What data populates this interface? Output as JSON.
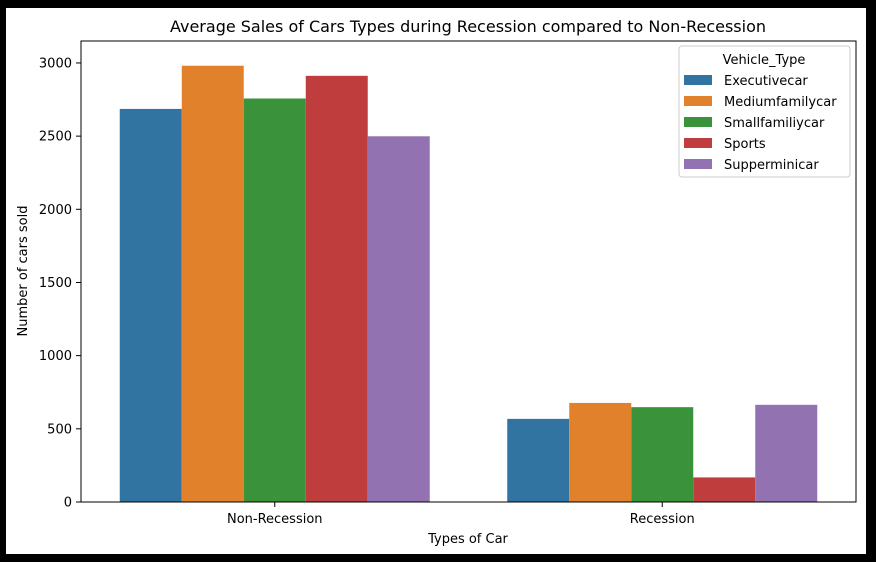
{
  "chart_data": {
    "type": "bar",
    "title": "Average Sales of Cars Types during Recession compared to Non-Recession",
    "xlabel": "Types of Car",
    "ylabel": "Number of cars sold",
    "categories": [
      "Non-Recession",
      "Recession"
    ],
    "series": [
      {
        "name": "Executivecar",
        "color": "#3274a1",
        "values": [
          2686,
          568
        ]
      },
      {
        "name": "Mediumfamilycar",
        "color": "#e1812c",
        "values": [
          2981,
          677
        ]
      },
      {
        "name": "Smallfamiliycar",
        "color": "#3a923a",
        "values": [
          2757,
          648
        ]
      },
      {
        "name": "Sports",
        "color": "#c03d3e",
        "values": [
          2912,
          168
        ]
      },
      {
        "name": "Supperminicar",
        "color": "#9372b2",
        "values": [
          2499,
          664
        ]
      }
    ],
    "ylim": [
      0,
      3150
    ],
    "yticks": [
      0,
      500,
      1000,
      1500,
      2000,
      2500,
      3000
    ],
    "grid": false,
    "legend": {
      "title": "Vehicle_Type",
      "position": "top-right"
    }
  }
}
